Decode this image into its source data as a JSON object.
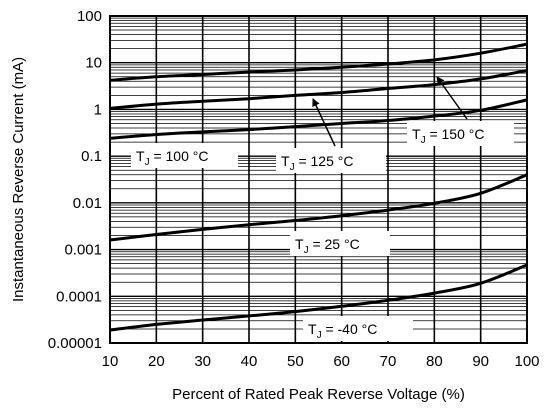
{
  "chart_data": {
    "type": "line",
    "xlabel": "Percent of Rated Peak Reverse Voltage (%)",
    "ylabel": "Instantaneous Reverse Current (mA)",
    "xlim": [
      10,
      100
    ],
    "ylim": [
      1e-05,
      100
    ],
    "y_scale": "log",
    "grid": true,
    "x_ticks": [
      "10",
      "20",
      "30",
      "40",
      "50",
      "60",
      "70",
      "80",
      "90",
      "100"
    ],
    "y_ticks": [
      "0.00001",
      "0.0001",
      "0.001",
      "0.01",
      "0.1",
      "1",
      "10",
      "100"
    ],
    "x": [
      10,
      20,
      30,
      40,
      50,
      60,
      70,
      80,
      90,
      100
    ],
    "series": [
      {
        "name": "150 °C",
        "values": [
          4.2,
          5.0,
          5.6,
          6.3,
          7.0,
          8.0,
          9.4,
          11.5,
          16,
          25
        ]
      },
      {
        "name": "125 °C",
        "values": [
          1.05,
          1.3,
          1.5,
          1.7,
          2.0,
          2.3,
          2.8,
          3.4,
          4.5,
          6.8
        ]
      },
      {
        "name": "100 °C",
        "values": [
          0.24,
          0.29,
          0.33,
          0.37,
          0.43,
          0.5,
          0.58,
          0.72,
          0.96,
          1.6
        ]
      },
      {
        "name": "25 °C",
        "values": [
          0.0016,
          0.0021,
          0.0027,
          0.0034,
          0.0042,
          0.0053,
          0.007,
          0.0098,
          0.016,
          0.04
        ]
      },
      {
        "name": "-40 °C",
        "values": [
          1.9e-05,
          2.5e-05,
          3.1e-05,
          3.8e-05,
          4.7e-05,
          6.1e-05,
          8.2e-05,
          0.000117,
          0.00019,
          0.00047
        ]
      }
    ],
    "annotations": [
      {
        "series": "150 °C",
        "prefix": "T",
        "sub": "J",
        "text": " = 150 °C"
      },
      {
        "series": "125 °C",
        "prefix": "T",
        "sub": "J",
        "text": " = 125 °C"
      },
      {
        "series": "100 °C",
        "prefix": "T",
        "sub": "J",
        "text": " = 100 °C"
      },
      {
        "series": "25 °C",
        "prefix": "T",
        "sub": "J",
        "text": " = 25 °C"
      },
      {
        "series": "-40 °C",
        "prefix": "T",
        "sub": "J",
        "text": " = -40 °C"
      }
    ]
  }
}
